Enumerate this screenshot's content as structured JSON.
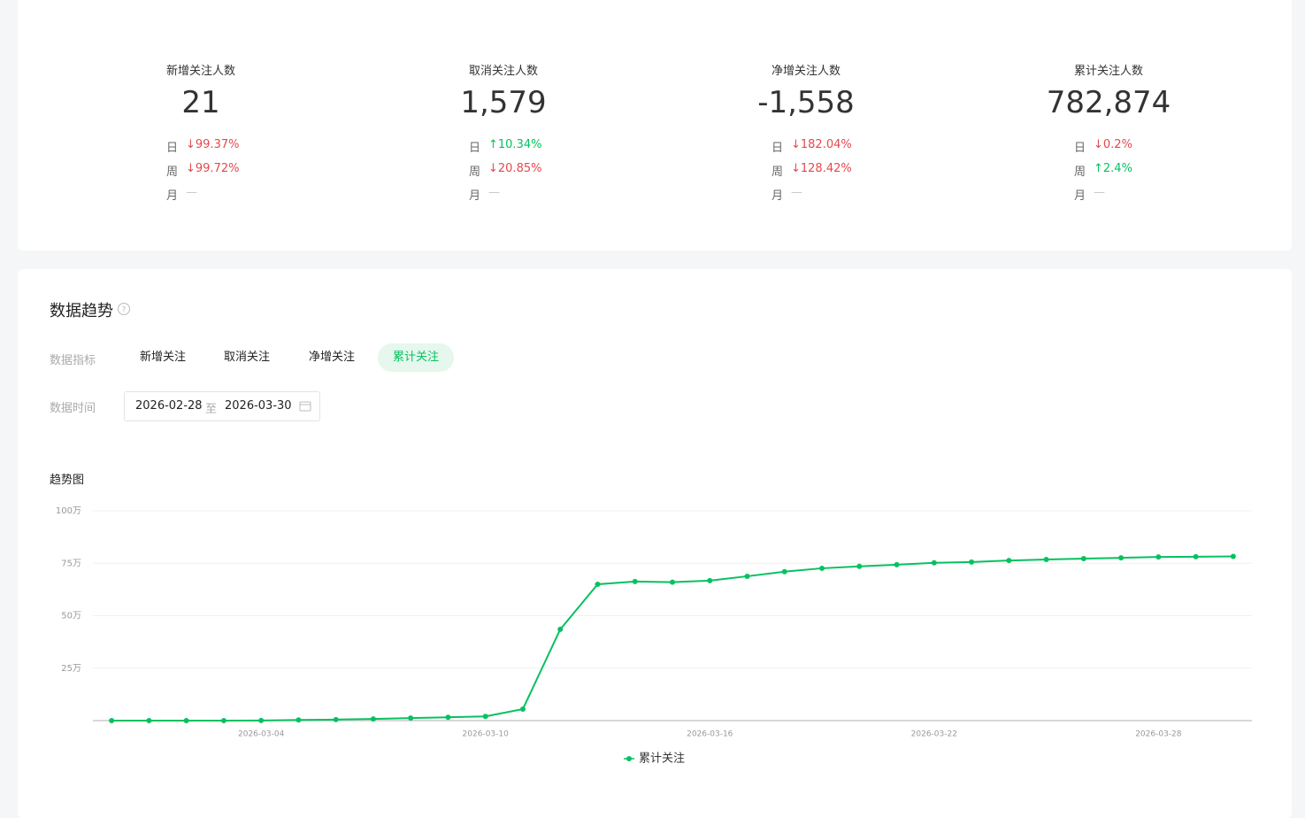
{
  "stats": [
    {
      "title": "新增关注人数",
      "value": "21",
      "rows": [
        {
          "label": "日",
          "change": "↓99.37%",
          "color": "#e5484d"
        },
        {
          "label": "周",
          "change": "↓99.72%",
          "color": "#e5484d"
        },
        {
          "label": "月",
          "change": "—",
          "color": "#c8c8c8"
        }
      ]
    },
    {
      "title": "取消关注人数",
      "value": "1,579",
      "rows": [
        {
          "label": "日",
          "change": "↑10.34%",
          "color": "#07c160"
        },
        {
          "label": "周",
          "change": "↓20.85%",
          "color": "#e5484d"
        },
        {
          "label": "月",
          "change": "—",
          "color": "#c8c8c8"
        }
      ]
    },
    {
      "title": "净增关注人数",
      "value": "-1,558",
      "rows": [
        {
          "label": "日",
          "change": "↓182.04%",
          "color": "#e5484d"
        },
        {
          "label": "周",
          "change": "↓128.42%",
          "color": "#e5484d"
        },
        {
          "label": "月",
          "change": "—",
          "color": "#c8c8c8"
        }
      ]
    },
    {
      "title": "累计关注人数",
      "value": "782,874",
      "rows": [
        {
          "label": "日",
          "change": "↓0.2%",
          "color": "#e5484d"
        },
        {
          "label": "周",
          "change": "↑2.4%",
          "color": "#07c160"
        },
        {
          "label": "月",
          "change": "—",
          "color": "#c8c8c8"
        }
      ]
    }
  ],
  "trend": {
    "title": "数据趋势",
    "metric_label": "数据指标",
    "metrics": [
      "新增关注",
      "取消关注",
      "净增关注",
      "累计关注"
    ],
    "active_metric": 3,
    "time_label": "数据时间",
    "date_start": "2026-02-28",
    "date_sep": "至",
    "date_end": "2026-03-30"
  },
  "chart_data": {
    "type": "line",
    "title": "趋势图",
    "categories": [
      null,
      null,
      null,
      null,
      "2026-03-04",
      null,
      null,
      null,
      null,
      null,
      "2026-03-10",
      null,
      null,
      null,
      null,
      null,
      "2026-03-16",
      null,
      null,
      null,
      null,
      null,
      "2026-03-22",
      null,
      null,
      null,
      null,
      null,
      "2026-03-28",
      null,
      null
    ],
    "series": [
      {
        "name": "累计关注",
        "color": "#07c160",
        "values": [
          0,
          0,
          0,
          0,
          500,
          3000,
          5000,
          8000,
          12000,
          16000,
          20000,
          55000,
          435000,
          650000,
          663000,
          660000,
          667000,
          688000,
          710000,
          726000,
          735000,
          743000,
          752000,
          756000,
          763000,
          768000,
          772000,
          776000,
          780000,
          781000,
          782874
        ]
      }
    ],
    "ylim": [
      0,
      1000000
    ],
    "yticks": [
      {
        "value": 250000,
        "label": "25万"
      },
      {
        "value": 500000,
        "label": "50万"
      },
      {
        "value": 750000,
        "label": "75万"
      },
      {
        "value": 1000000,
        "label": "100万"
      }
    ],
    "grid": true,
    "legend": "bottom"
  }
}
